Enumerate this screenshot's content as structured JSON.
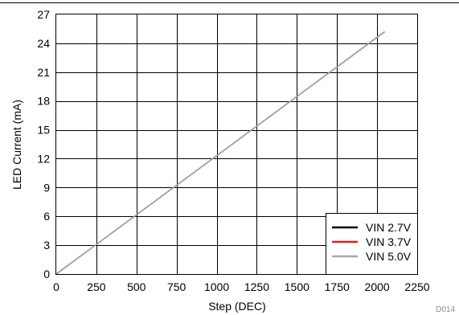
{
  "chart_data": {
    "type": "line",
    "xlabel": "Step (DEC)",
    "ylabel": "LED Current (mA)",
    "xlim": [
      0,
      2250
    ],
    "ylim": [
      0,
      27
    ],
    "x_ticks": [
      0,
      250,
      500,
      750,
      1000,
      1250,
      1500,
      1750,
      2000,
      2250
    ],
    "y_ticks": [
      0,
      3,
      6,
      9,
      12,
      15,
      18,
      21,
      24,
      27
    ],
    "grid": true,
    "legend_position": "bottom-right",
    "figure_id": "D014",
    "series": [
      {
        "name": "VIN 2.7V",
        "color": "#000000",
        "x": [
          0,
          2047
        ],
        "y": [
          0,
          25.2
        ]
      },
      {
        "name": "VIN 3.7V",
        "color": "#e0201b",
        "x": [
          0,
          2047
        ],
        "y": [
          0,
          25.2
        ]
      },
      {
        "name": "VIN 5.0V",
        "color": "#a8a8a8",
        "x": [
          0,
          2047
        ],
        "y": [
          0,
          25.2
        ]
      }
    ]
  }
}
